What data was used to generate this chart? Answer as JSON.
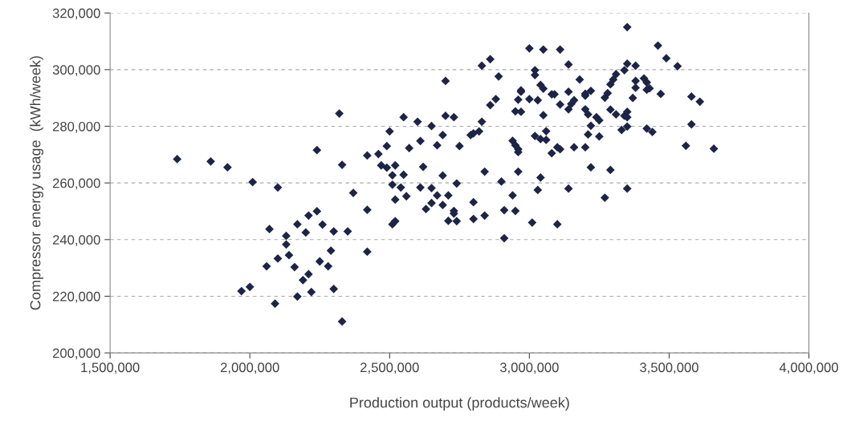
{
  "chart_data": {
    "type": "scatter",
    "xlabel": "Production output (products/week)",
    "ylabel": "Compressor energy usage  (kWh/week)",
    "xlim": [
      1500000,
      4000000
    ],
    "xticks": [
      {
        "value": 1500000,
        "label": "1,500,000"
      },
      {
        "value": 2000000,
        "label": "2,000,000"
      },
      {
        "value": 2500000,
        "label": "2,500,000"
      },
      {
        "value": 3000000,
        "label": "3,000,000"
      },
      {
        "value": 3500000,
        "label": "3,500,000"
      },
      {
        "value": 4000000,
        "label": "4,000,000"
      }
    ],
    "ylim": [
      200000,
      320000
    ],
    "yticks": [
      {
        "value": 200000,
        "label": "200,000"
      },
      {
        "value": 220000,
        "label": "220,000"
      },
      {
        "value": 240000,
        "label": "240,000"
      },
      {
        "value": 260000,
        "label": "260,000"
      },
      {
        "value": 280000,
        "label": "280,000"
      },
      {
        "value": 300000,
        "label": "300,000"
      },
      {
        "value": 320000,
        "label": "320,000"
      }
    ],
    "grid": "y",
    "marker": "diamond",
    "series": [
      {
        "color": "#1c2448",
        "x": [
          1740000,
          1860000,
          1920000,
          2010000,
          2100000,
          2240000,
          2330000,
          2370000,
          2420000,
          2420000,
          2420000,
          2070000,
          2130000,
          2130000,
          2170000,
          2200000,
          2210000,
          2240000,
          2260000,
          2300000,
          2350000,
          2290000,
          2100000,
          2060000,
          2140000,
          2160000,
          2250000,
          2280000,
          2210000,
          2190000,
          1970000,
          2000000,
          2170000,
          2220000,
          2300000,
          2090000,
          2330000,
          2700000,
          2320000,
          2550000,
          2600000,
          2650000,
          2700000,
          2730000,
          2500000,
          2490000,
          2570000,
          2610000,
          2690000,
          2670000,
          2750000,
          2790000,
          2800000,
          2820000,
          2830000,
          2860000,
          2880000,
          2960000,
          2950000,
          2970000,
          2940000,
          2950000,
          2960000,
          2460000,
          2470000,
          2490000,
          2520000,
          2510000,
          2550000,
          2620000,
          2690000,
          2840000,
          2960000,
          2510000,
          2540000,
          2560000,
          2610000,
          2650000,
          2670000,
          2710000,
          2740000,
          2520000,
          2650000,
          2690000,
          2630000,
          2800000,
          2900000,
          2940000,
          2910000,
          2950000,
          2730000,
          2730000,
          2710000,
          2740000,
          2800000,
          2840000,
          2520000,
          2510000,
          2910000,
          3000000,
          3050000,
          3110000,
          3460000,
          3490000,
          3530000,
          2860000,
          2830000,
          2890000,
          3140000,
          3020000,
          3020000,
          3180000,
          3350000,
          3380000,
          3340000,
          3310000,
          3300000,
          3290000,
          3280000,
          3270000,
          3380000,
          3410000,
          3420000,
          3380000,
          3420000,
          3430000,
          3470000,
          3370000,
          2970000,
          3040000,
          3050000,
          3080000,
          3090000,
          3140000,
          3200000,
          3220000,
          3200000,
          3000000,
          3030000,
          3110000,
          3160000,
          3150000,
          3140000,
          2970000,
          3050000,
          3200000,
          3210000,
          3240000,
          3250000,
          3290000,
          3310000,
          3340000,
          3350000,
          3350000,
          3330000,
          3350000,
          3420000,
          3440000,
          3220000,
          3210000,
          3250000,
          3020000,
          3040000,
          3060000,
          3060000,
          2960000,
          3080000,
          3100000,
          3110000,
          3160000,
          3200000,
          3220000,
          3290000,
          3040000,
          3030000,
          3140000,
          3350000,
          3270000,
          3010000,
          3100000,
          3580000,
          3610000,
          3580000,
          3560000,
          3660000,
          3350000
        ],
        "values": [
          268400,
          267600,
          265500,
          260300,
          258400,
          271600,
          266400,
          256500,
          269700,
          250500,
          235700,
          243700,
          241300,
          238300,
          245400,
          242500,
          248500,
          250000,
          245300,
          242900,
          242900,
          236100,
          233300,
          230600,
          234500,
          230300,
          232300,
          230600,
          227800,
          225700,
          221800,
          223300,
          219900,
          221500,
          222600,
          217400,
          211100,
          296000,
          284500,
          283200,
          281600,
          280100,
          283700,
          283200,
          278200,
          273000,
          272300,
          274800,
          276900,
          273300,
          273000,
          276900,
          277500,
          278200,
          281600,
          287500,
          289600,
          289400,
          285300,
          292200,
          274900,
          273300,
          270900,
          270200,
          266200,
          265400,
          266200,
          262700,
          262900,
          265700,
          262600,
          264000,
          264000,
          259400,
          258400,
          255300,
          258400,
          258200,
          255600,
          255600,
          259800,
          254100,
          252900,
          252200,
          250800,
          253200,
          260500,
          255600,
          250400,
          250100,
          250100,
          249200,
          246600,
          246500,
          247300,
          248500,
          246500,
          245400,
          240500,
          307500,
          307100,
          307100,
          308500,
          304000,
          301200,
          303700,
          301400,
          297600,
          301800,
          299800,
          298100,
          296500,
          302100,
          301400,
          299800,
          298400,
          296500,
          294800,
          291700,
          290100,
          296000,
          296900,
          295500,
          293600,
          292900,
          293400,
          291400,
          290000,
          292700,
          294600,
          293300,
          291300,
          291300,
          292200,
          291500,
          292500,
          290800,
          289600,
          289200,
          287700,
          289200,
          287900,
          286000,
          285100,
          283900,
          286000,
          284200,
          283200,
          282100,
          285900,
          284200,
          283700,
          285100,
          283200,
          278700,
          279900,
          279200,
          278000,
          280200,
          277100,
          276400,
          276600,
          275500,
          275200,
          278300,
          271900,
          270500,
          272600,
          271900,
          272600,
          272600,
          265500,
          264600,
          261900,
          257500,
          258000,
          258000,
          254800,
          246000,
          245400,
          290500,
          288700,
          280700,
          273100,
          272100,
          315000
        ]
      }
    ]
  }
}
